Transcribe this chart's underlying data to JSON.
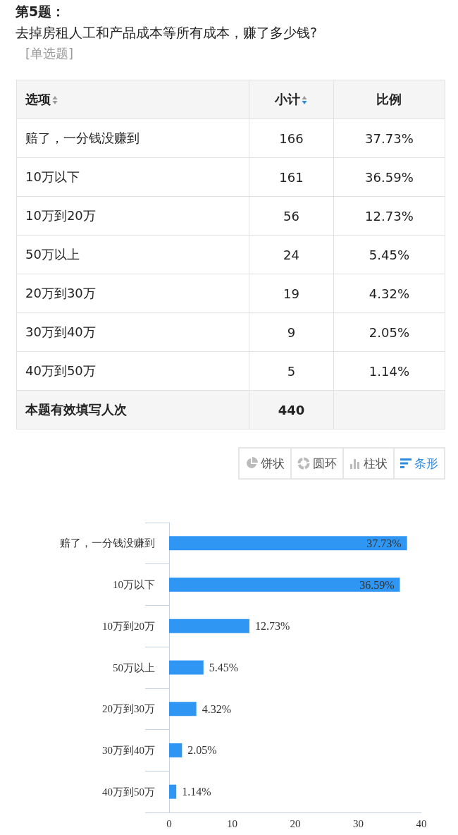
{
  "chart_data": [
    {
      "type": "other",
      "data_labels": true,
      "title": "第5题：",
      "subtitle": "去掉房租人工和产品成本等所有成本，赚了多少钱?",
      "annotations": [
        "[单选题]",
        "选项",
        "本题有效填写人次",
        "440",
        "饼状",
        "圆环",
        "柱状",
        "条形"
      ],
      "categories": [
        "赔了，一分钱没赚到",
        "10万以下",
        "10万到20万",
        "50万以上",
        "20万到30万",
        "30万到40万",
        "40万到50万"
      ],
      "series": [
        {
          "name": "小计",
          "values": [
            166,
            161,
            56,
            24,
            19,
            9,
            5
          ]
        },
        {
          "name": "比例",
          "values": [
            37.73,
            36.59,
            12.73,
            5.45,
            4.32,
            2.05,
            1.14
          ],
          "value_labels": [
            "37.73%",
            "36.59%",
            "12.73%",
            "5.45%",
            "4.32%",
            "2.05%",
            "1.14%"
          ]
        }
      ]
    },
    {
      "type": "bar",
      "orientation": "horizontal",
      "categories": [
        "赔了，一分钱没赚到",
        "10万以下",
        "10万到20万",
        "50万以上",
        "20万到30万",
        "30万到40万",
        "40万到50万"
      ],
      "values": [
        37.73,
        36.59,
        12.73,
        5.45,
        4.32,
        2.05,
        1.14
      ],
      "value_labels": [
        "37.73%",
        "36.59%",
        "12.73%",
        "5.45%",
        "4.32%",
        "2.05%",
        "1.14%"
      ],
      "color": "#2f96f3",
      "xlim": [
        0,
        40
      ],
      "xticks": [
        0,
        10,
        20,
        30,
        40
      ]
    }
  ]
}
